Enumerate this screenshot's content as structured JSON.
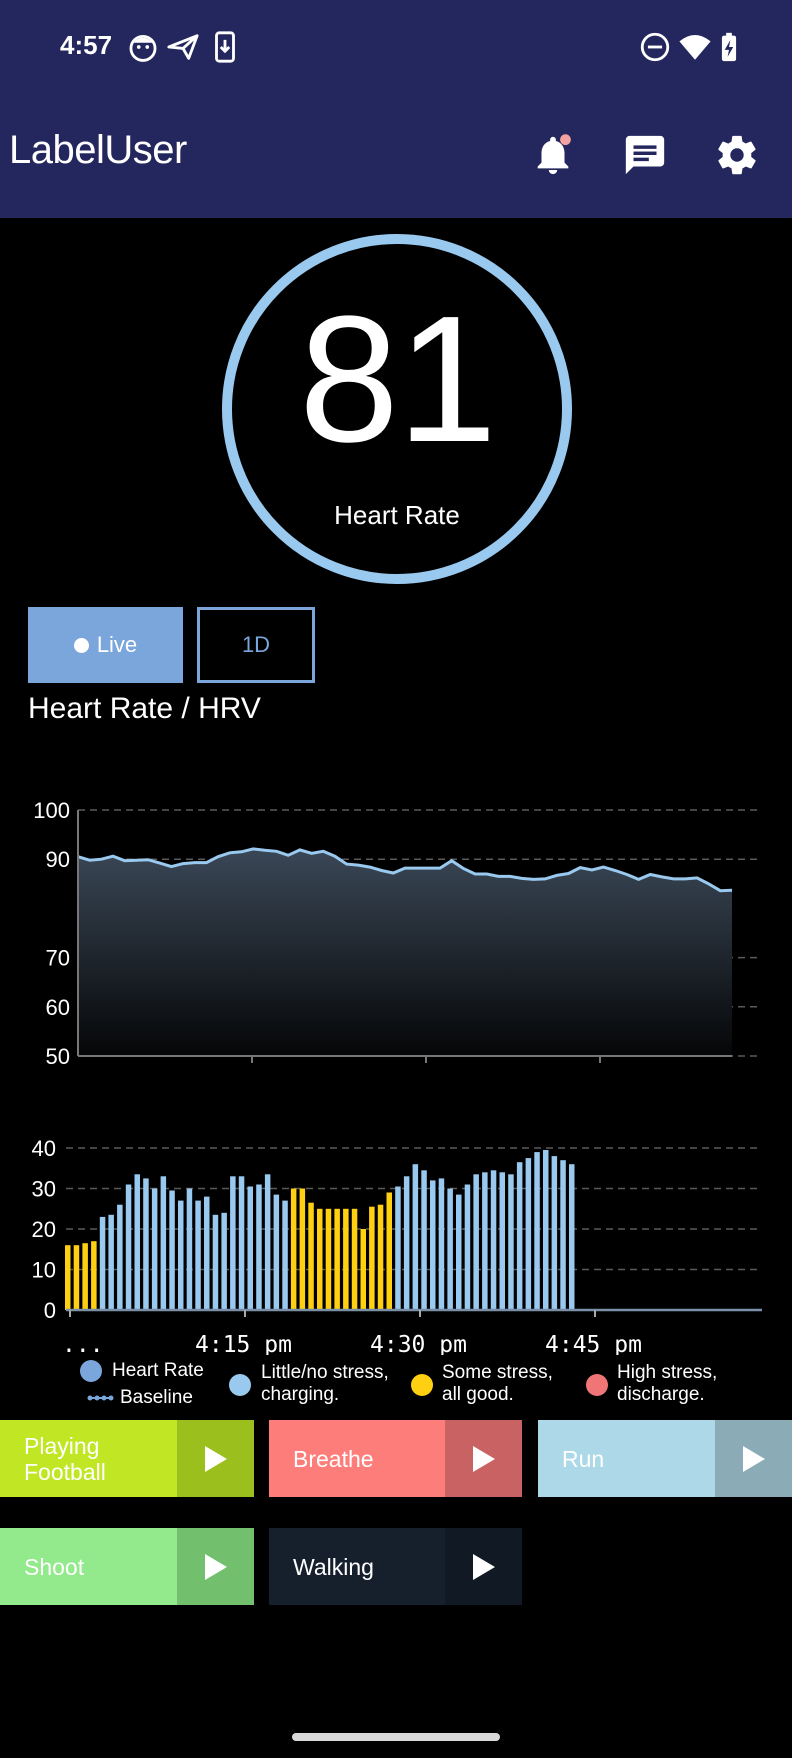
{
  "status_bar": {
    "time": "4:57"
  },
  "app_bar": {
    "title": "LabelUser"
  },
  "gauge": {
    "value": "81",
    "label": "Heart Rate"
  },
  "tabs": {
    "live_label": "Live",
    "day_label": "1D"
  },
  "section": {
    "title": "Heart Rate / HRV"
  },
  "chart_data": [
    {
      "type": "area",
      "ylim": [
        50,
        100
      ],
      "y_ticks": [
        "100",
        "90",
        "70",
        "60",
        "50"
      ],
      "series": [
        {
          "name": "Heart Rate",
          "values": [
            90.5,
            89.8,
            90,
            90.6,
            89.7,
            89.8,
            89.9,
            89.2,
            88.5,
            89.1,
            89.3,
            89.3,
            90.5,
            91.3,
            91.5,
            92.1,
            91.8,
            91.6,
            90.8,
            91.9,
            91.2,
            91.6,
            90.6,
            89,
            88.8,
            88.4,
            87.7,
            87.2,
            88.2,
            88.2,
            88.2,
            88.2,
            89.7,
            88.1,
            87,
            87,
            86.5,
            86.5,
            86.1,
            85.9,
            86,
            86.7,
            87.1,
            88.3,
            87.8,
            88.4,
            87.7,
            86.9,
            85.9,
            86.9,
            86.4,
            86,
            86,
            86.2,
            85,
            83.6,
            83.7
          ]
        }
      ]
    },
    {
      "type": "bar",
      "ylim": [
        0,
        40
      ],
      "y_ticks": [
        "40",
        "30",
        "20",
        "10",
        "0"
      ],
      "x_tick_labels": [
        "...",
        "4:15 pm",
        "4:30 pm",
        "4:45 pm"
      ],
      "series": [
        {
          "name": "Stress",
          "values": [
            16,
            16,
            16.5,
            17,
            23,
            23.5,
            26,
            31,
            33.5,
            32.5,
            30,
            33,
            29.5,
            27,
            30,
            27,
            28,
            23.5,
            24,
            33,
            33,
            30.5,
            31,
            33.5,
            28.5,
            27,
            30,
            30,
            26.5,
            25,
            25,
            25,
            25,
            25,
            20,
            25.5,
            26,
            29,
            30.5,
            33,
            36,
            34.5,
            32,
            32.5,
            30,
            28.5,
            31,
            33.5,
            34,
            34.5,
            34,
            33.5,
            36.5,
            37.5,
            39,
            39.5,
            38,
            37,
            36
          ],
          "levels": [
            "s",
            "s",
            "s",
            "s",
            "l",
            "l",
            "l",
            "l",
            "l",
            "l",
            "l",
            "l",
            "l",
            "l",
            "l",
            "l",
            "l",
            "l",
            "l",
            "l",
            "l",
            "l",
            "l",
            "l",
            "l",
            "l",
            "s",
            "s",
            "s",
            "s",
            "s",
            "s",
            "s",
            "s",
            "s",
            "s",
            "s",
            "s",
            "l",
            "l",
            "l",
            "l",
            "l",
            "l",
            "l",
            "l",
            "l",
            "l",
            "l",
            "l",
            "l",
            "l",
            "l",
            "l",
            "l",
            "l",
            "l",
            "l",
            "l"
          ]
        }
      ]
    }
  ],
  "legend": {
    "heart_rate": "Heart Rate",
    "baseline": "Baseline",
    "little_stress": "Little/no stress,\ncharging.",
    "some_stress": "Some stress,\nall good.",
    "high_stress": "High stress,\ndischarge."
  },
  "colors": {
    "app_bar": "#24275e",
    "accent": "#7aa6dc",
    "light_blue": "#99c9ee",
    "yellow": "#fed011",
    "red": "#f07577"
  },
  "activities": [
    {
      "label": "Playing\nFootball",
      "color": "#c1e624",
      "play_color": "#9bbf1c"
    },
    {
      "label": "Breathe",
      "color": "#fd7d7a",
      "play_color": "#c96262"
    },
    {
      "label": "Run",
      "color": "#acd8e7",
      "play_color": "#8babb6"
    },
    {
      "label": "Shoot",
      "color": "#92ea8c",
      "play_color": "#72c06e"
    },
    {
      "label": "Walking",
      "color": "#16202c",
      "play_color": "#111a24"
    }
  ]
}
